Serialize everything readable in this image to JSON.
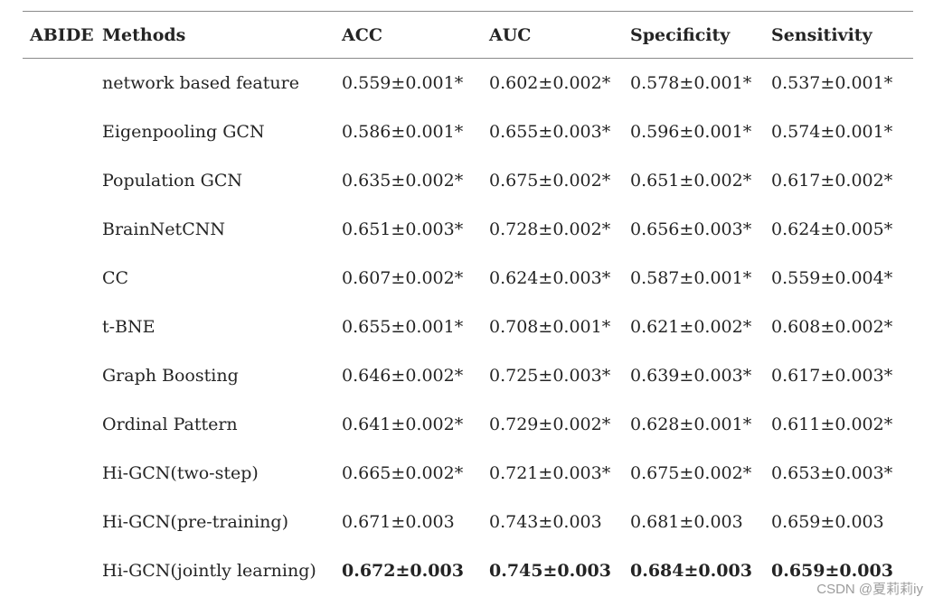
{
  "table": {
    "group_label": "ABIDE",
    "columns": [
      "Methods",
      "ACC",
      "AUC",
      "Specificity",
      "Sensitivity"
    ],
    "rows": [
      {
        "method": "network based feature",
        "acc": "0.559±0.001*",
        "auc": "0.602±0.002*",
        "specificity": "0.578±0.001*",
        "sensitivity": "0.537±0.001*",
        "bold": false
      },
      {
        "method": "Eigenpooling GCN",
        "acc": "0.586±0.001*",
        "auc": "0.655±0.003*",
        "specificity": "0.596±0.001*",
        "sensitivity": "0.574±0.001*",
        "bold": false
      },
      {
        "method": "Population GCN",
        "acc": "0.635±0.002*",
        "auc": "0.675±0.002*",
        "specificity": "0.651±0.002*",
        "sensitivity": "0.617±0.002*",
        "bold": false
      },
      {
        "method": "BrainNetCNN",
        "acc": "0.651±0.003*",
        "auc": "0.728±0.002*",
        "specificity": "0.656±0.003*",
        "sensitivity": "0.624±0.005*",
        "bold": false
      },
      {
        "method": "CC",
        "acc": "0.607±0.002*",
        "auc": "0.624±0.003*",
        "specificity": "0.587±0.001*",
        "sensitivity": "0.559±0.004*",
        "bold": false
      },
      {
        "method": "t-BNE",
        "acc": "0.655±0.001*",
        "auc": "0.708±0.001*",
        "specificity": "0.621±0.002*",
        "sensitivity": "0.608±0.002*",
        "bold": false
      },
      {
        "method": "Graph Boosting",
        "acc": "0.646±0.002*",
        "auc": "0.725±0.003*",
        "specificity": "0.639±0.003*",
        "sensitivity": "0.617±0.003*",
        "bold": false
      },
      {
        "method": "Ordinal Pattern",
        "acc": "0.641±0.002*",
        "auc": "0.729±0.002*",
        "specificity": "0.628±0.001*",
        "sensitivity": "0.611±0.002*",
        "bold": false
      },
      {
        "method": "Hi-GCN(two-step)",
        "acc": "0.665±0.002*",
        "auc": "0.721±0.003*",
        "specificity": "0.675±0.002*",
        "sensitivity": "0.653±0.003*",
        "bold": false
      },
      {
        "method": "Hi-GCN(pre-training)",
        "acc": "0.671±0.003",
        "auc": "0.743±0.003",
        "specificity": "0.681±0.003",
        "sensitivity": "0.659±0.003",
        "bold": false
      },
      {
        "method": "Hi-GCN(jointly learning)",
        "acc": "0.672±0.003",
        "auc": "0.745±0.003",
        "specificity": "0.684±0.003",
        "sensitivity": "0.659±0.003",
        "bold": true
      }
    ]
  },
  "watermark": {
    "text": "CSDN @夏莉莉iy"
  },
  "colors": {
    "rule": "#8a8a8a",
    "text": "#242424",
    "watermark": "#9c9c9c",
    "background": "#ffffff"
  }
}
